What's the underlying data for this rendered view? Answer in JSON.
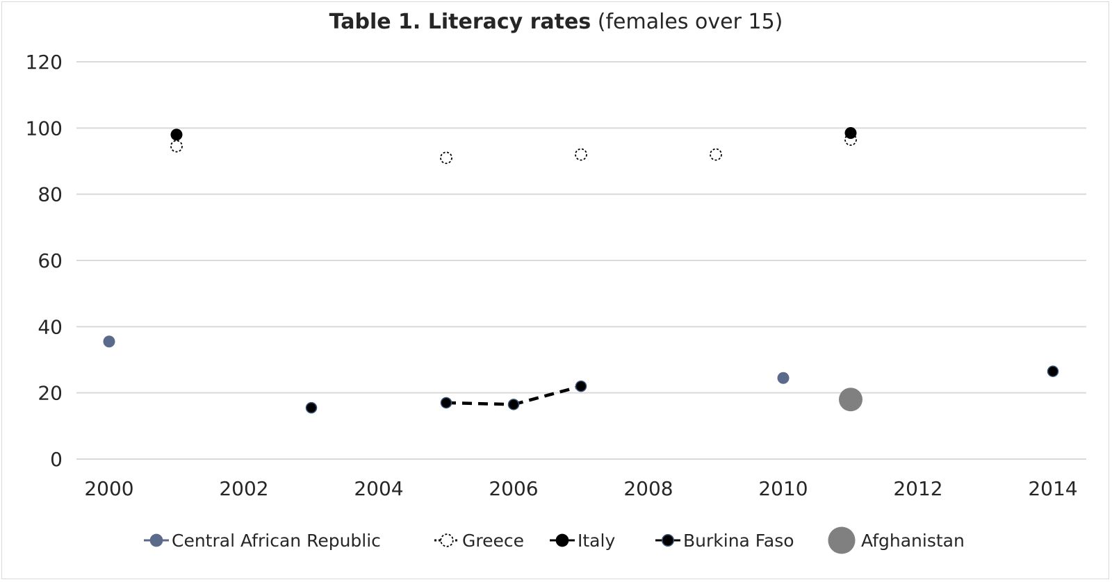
{
  "chart_data": {
    "type": "scatter",
    "title_bold": "Table 1. Literacy rates",
    "title_rest": " (females over 15)",
    "xlabel": "",
    "ylabel": "",
    "xlim": [
      2000,
      2014
    ],
    "ylim": [
      0,
      120
    ],
    "x_ticks": [
      "2000",
      "2002",
      "2004",
      "2006",
      "2008",
      "2010",
      "2012",
      "2014"
    ],
    "y_ticks": [
      "0",
      "20",
      "40",
      "60",
      "80",
      "100",
      "120"
    ],
    "grid": true,
    "legend_position": "bottom",
    "series": [
      {
        "name": "Central African Republic",
        "marker": "filled-circle",
        "color": "#5a6a8a",
        "line": false,
        "points": [
          [
            2000,
            35.5
          ],
          [
            2010,
            24.5
          ]
        ]
      },
      {
        "name": "Greece",
        "marker": "open-circle-dashed",
        "color": "#000000",
        "line": false,
        "points": [
          [
            2001,
            94.5
          ],
          [
            2005,
            91
          ],
          [
            2007,
            92
          ],
          [
            2009,
            92
          ],
          [
            2011,
            96.5
          ]
        ]
      },
      {
        "name": "Italy",
        "marker": "filled-circle",
        "color": "#000000",
        "line": false,
        "points": [
          [
            2001,
            98
          ],
          [
            2011,
            98.5
          ]
        ]
      },
      {
        "name": "Burkina Faso",
        "marker": "filled-circle-outlined",
        "color": "#000000",
        "outline": "#3c5478",
        "line": "dashed",
        "points": [
          [
            2003,
            15.5
          ],
          [
            2005,
            17
          ],
          [
            2006,
            16.5
          ],
          [
            2007,
            22
          ],
          [
            2014,
            26.5
          ]
        ]
      },
      {
        "name": "Afghanistan",
        "marker": "large-filled-circle",
        "color": "#808080",
        "line": false,
        "points": [
          [
            2011,
            18
          ]
        ]
      }
    ]
  }
}
